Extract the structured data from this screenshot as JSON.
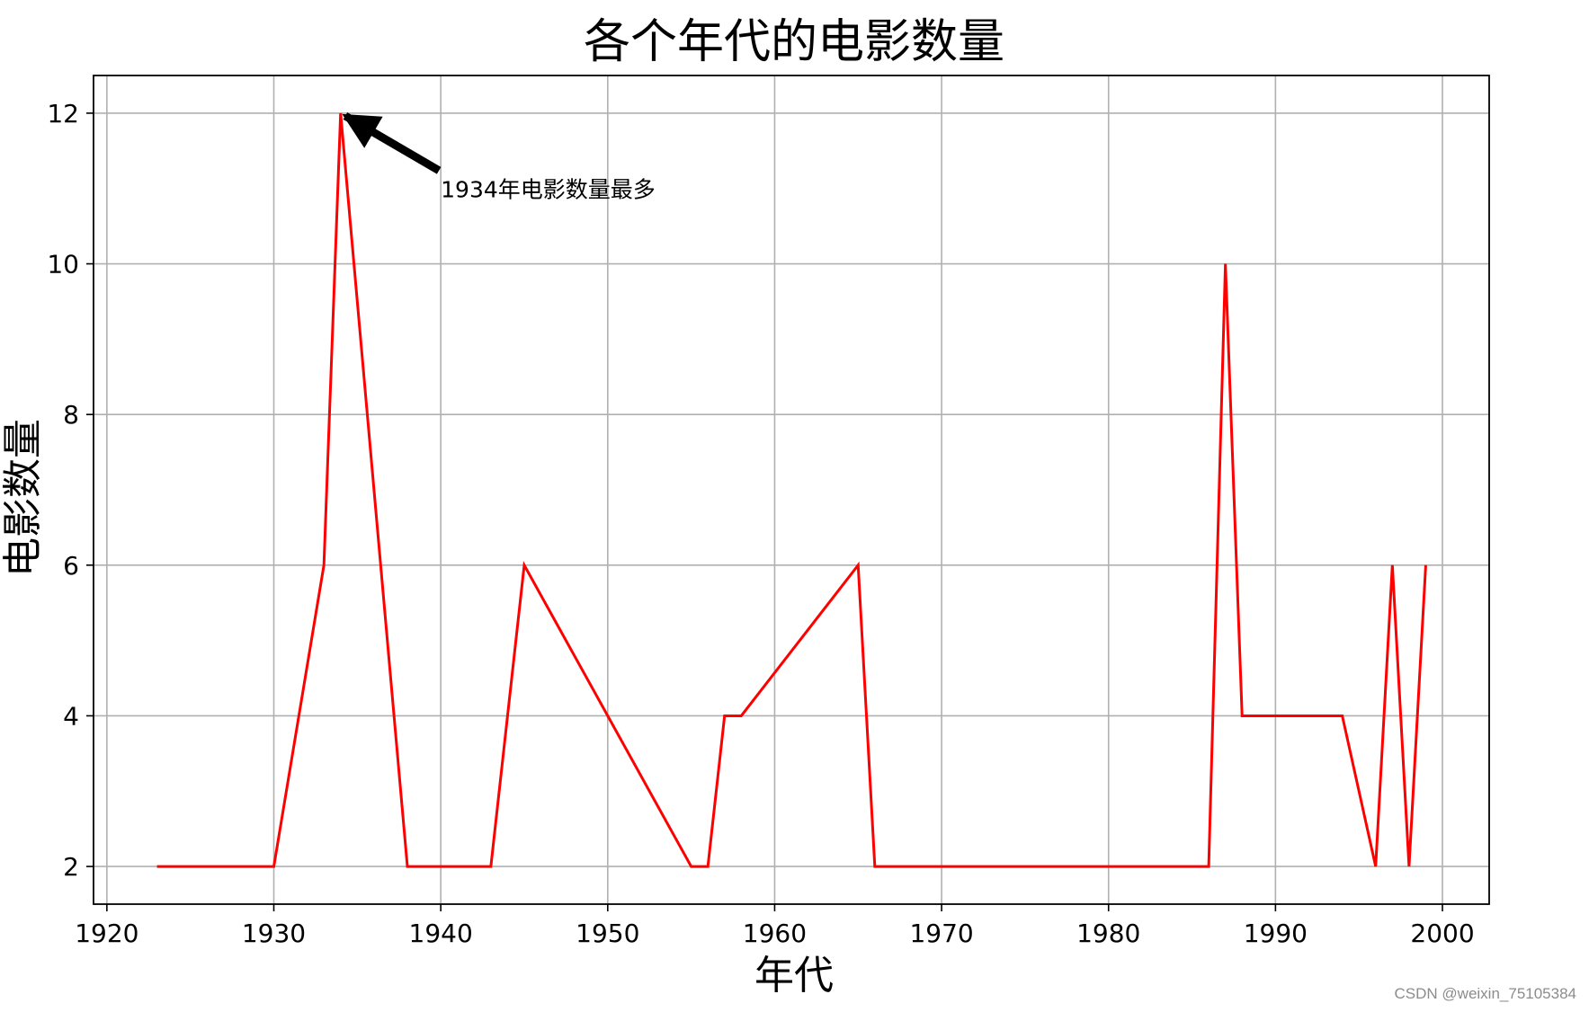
{
  "chart_data": {
    "type": "line",
    "title": "各个年代的电影数量",
    "xlabel": "年代",
    "ylabel": "电影数量",
    "xlim": [
      1919.2,
      2002.8
    ],
    "ylim": [
      1.5,
      12.5
    ],
    "x_ticks": [
      1920,
      1930,
      1940,
      1950,
      1960,
      1970,
      1980,
      1990,
      2000
    ],
    "y_ticks": [
      2,
      4,
      6,
      8,
      10,
      12
    ],
    "grid": true,
    "series": [
      {
        "color": "#ff0000",
        "x": [
          1923,
          1930,
          1933,
          1934,
          1938,
          1943,
          1945,
          1955,
          1956,
          1957,
          1958,
          1965,
          1966,
          1986,
          1987,
          1988,
          1994,
          1996,
          1997,
          1998,
          1999
        ],
        "y": [
          2,
          2,
          6,
          12,
          2,
          2,
          6,
          2,
          2,
          4,
          4,
          6,
          2,
          2,
          10,
          4,
          4,
          2,
          6,
          2,
          6
        ]
      }
    ],
    "annotations": [
      {
        "text": "1934年电影数量最多",
        "xy": [
          1934,
          12
        ],
        "xytext": [
          1940,
          11
        ],
        "arrow_color": "#000000"
      }
    ]
  },
  "watermark": "CSDN @weixin_75105384"
}
